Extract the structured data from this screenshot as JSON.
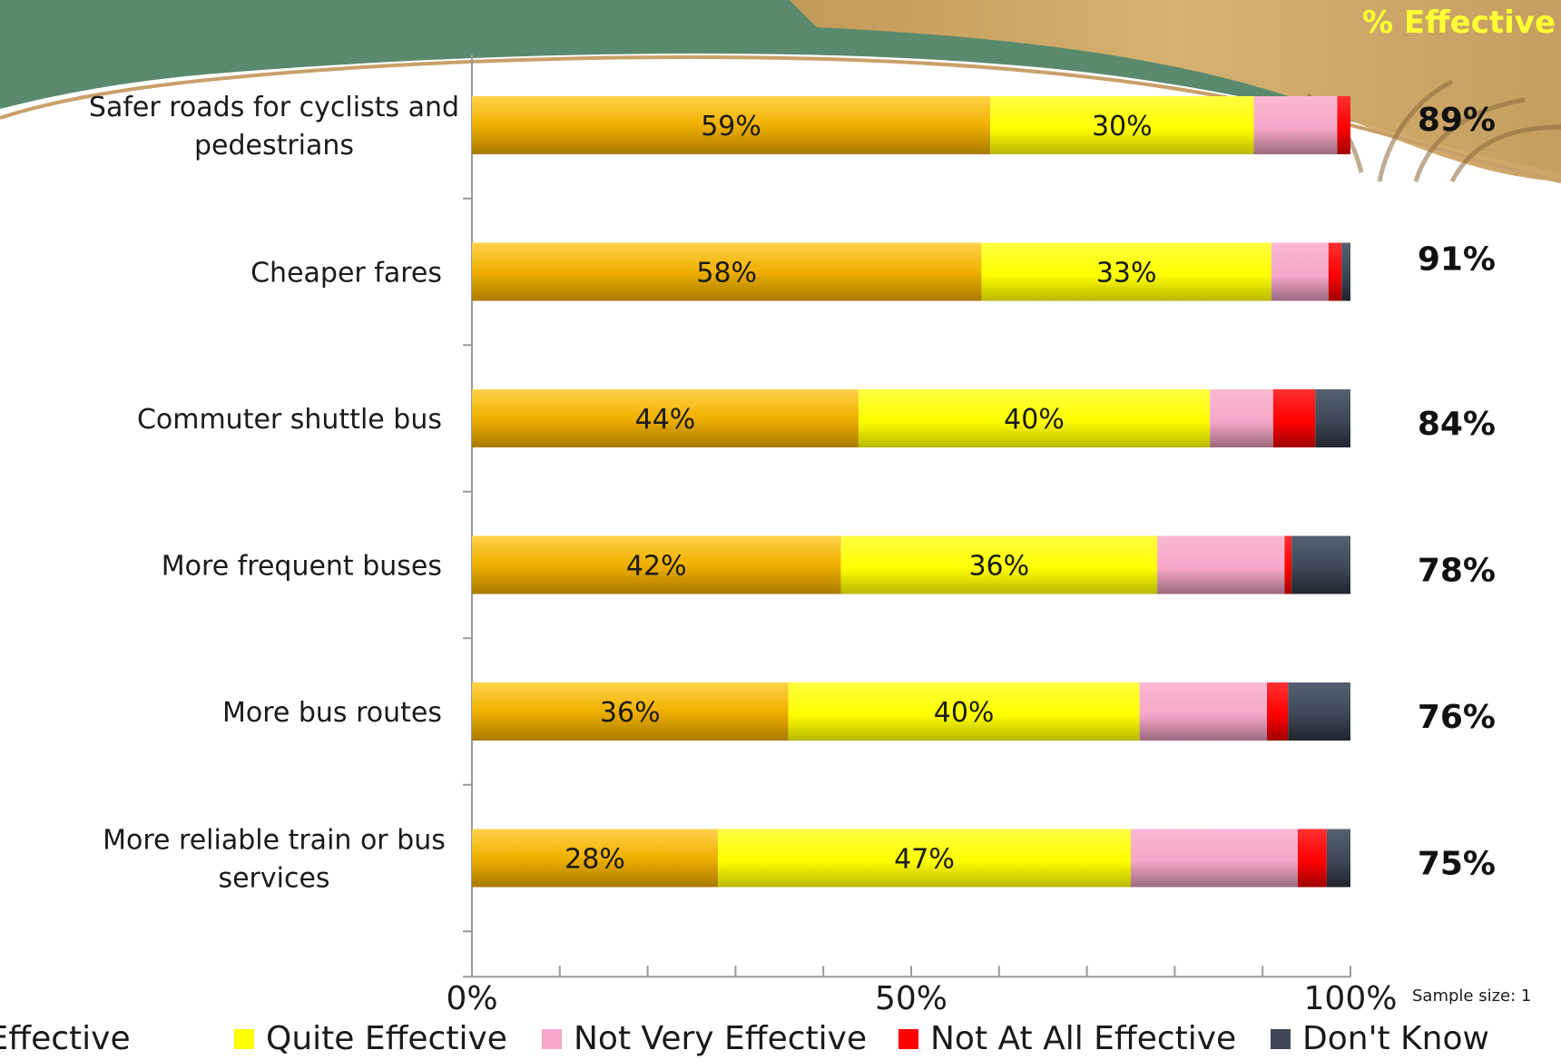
{
  "header": {
    "effective_title": "% Effective"
  },
  "footer": {
    "sample_size": "Sample size: 1"
  },
  "colors": {
    "very_effective": "#f0b000",
    "quite_effective": "#ffff00",
    "not_very_effective": "#f7a7c9",
    "not_at_all_effective": "#ff0000",
    "dont_know": "#3f4756",
    "background_green": "#5a8a6e",
    "background_sand": "#d7ad6a"
  },
  "chart_data": {
    "type": "bar",
    "orientation": "horizontal",
    "stacked": true,
    "categories": [
      "Safer roads for cyclists and pedestrians",
      "Cheaper fares",
      "Commuter shuttle bus",
      "More frequent buses",
      "More bus routes",
      "More reliable train or bus services"
    ],
    "series": [
      {
        "name": "Very Effective",
        "values": [
          59,
          58,
          44,
          42,
          36,
          28
        ],
        "labels": [
          "59%",
          "58%",
          "44%",
          "42%",
          "36%",
          "28%"
        ]
      },
      {
        "name": "Quite Effective",
        "values": [
          30,
          33,
          40,
          36,
          40,
          47
        ],
        "labels": [
          "30%",
          "33%",
          "40%",
          "36%",
          "40%",
          "47%"
        ]
      },
      {
        "name": "Not Very Effective",
        "values": [
          9.5,
          6.5,
          7.2,
          14.5,
          14.5,
          19
        ],
        "labels": [
          "",
          "",
          "",
          "",
          "",
          ""
        ]
      },
      {
        "name": "Not At All Effective",
        "values": [
          1.5,
          1.5,
          4.8,
          0.8,
          2.4,
          3.3
        ],
        "labels": [
          "",
          "",
          "",
          "",
          "",
          ""
        ]
      },
      {
        "name": "Don't Know",
        "values": [
          0,
          1,
          4,
          6.7,
          7.1,
          2.7
        ],
        "labels": [
          "",
          "",
          "",
          "",
          "",
          ""
        ]
      }
    ],
    "effective_totals": [
      "89%",
      "91%",
      "84%",
      "78%",
      "76%",
      "75%"
    ],
    "xlim": [
      0,
      100
    ],
    "xticks": [
      "0%",
      "50%",
      "100%"
    ],
    "legend_position": "bottom",
    "grid": false
  }
}
